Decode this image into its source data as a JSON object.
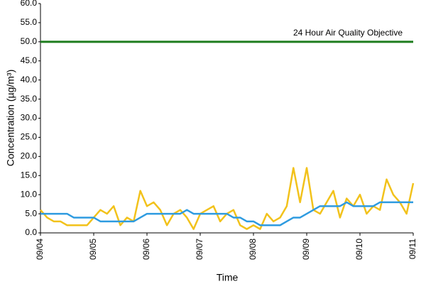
{
  "chart_data": {
    "type": "line",
    "ylabel": "Concentration (µg/m³)",
    "xlabel": "Time",
    "annotation": "24 Hour Air Quality Objective",
    "x": [
      0,
      3,
      6,
      9,
      12,
      15,
      18,
      21,
      24,
      27,
      30,
      33,
      36,
      39,
      42,
      45,
      48,
      51,
      54,
      57,
      60,
      63,
      66,
      69,
      72,
      75,
      78,
      81,
      84,
      87,
      90,
      93,
      96,
      99,
      102,
      105,
      108,
      111,
      114,
      117,
      120,
      123,
      126,
      129,
      132,
      135,
      138,
      141,
      144,
      147,
      150,
      153,
      156,
      159,
      162,
      165,
      168
    ],
    "xlim": [
      0,
      168
    ],
    "xticks": [
      {
        "value": 0,
        "label": "09/04"
      },
      {
        "value": 24,
        "label": "09/05"
      },
      {
        "value": 48,
        "label": "09/06"
      },
      {
        "value": 72,
        "label": "09/07"
      },
      {
        "value": 96,
        "label": "09/08"
      },
      {
        "value": 120,
        "label": "09/09"
      },
      {
        "value": 144,
        "label": "09/10"
      },
      {
        "value": 168,
        "label": "09/11"
      }
    ],
    "ylim": [
      0,
      60
    ],
    "yticks": [
      {
        "value": 0,
        "label": "0.0"
      },
      {
        "value": 5,
        "label": "5.0"
      },
      {
        "value": 10,
        "label": "10.0"
      },
      {
        "value": 15,
        "label": "15.0"
      },
      {
        "value": 20,
        "label": "20.0"
      },
      {
        "value": 25,
        "label": "25.0"
      },
      {
        "value": 30,
        "label": "30.0"
      },
      {
        "value": 35,
        "label": "35.0"
      },
      {
        "value": 40,
        "label": "40.0"
      },
      {
        "value": 45,
        "label": "45.0"
      },
      {
        "value": 50,
        "label": "50.0"
      },
      {
        "value": 55,
        "label": "55.0"
      },
      {
        "value": 60,
        "label": "60.0"
      }
    ],
    "grid": false,
    "series": [
      {
        "color": "#f2c21b",
        "values": [
          6,
          4,
          3,
          3,
          2,
          2,
          2,
          2,
          4,
          6,
          5,
          7,
          2,
          4,
          3,
          11,
          7,
          8,
          6,
          2,
          5,
          6,
          4,
          1,
          5,
          6,
          7,
          3,
          5,
          6,
          2,
          1,
          2,
          1,
          5,
          3,
          4,
          7,
          17,
          8,
          17,
          6,
          5,
          8,
          11,
          4,
          9,
          7,
          10,
          5,
          7,
          6,
          14,
          10,
          8,
          5,
          13
        ]
      },
      {
        "color": "#2e9be0",
        "values": [
          5,
          5,
          5,
          5,
          5,
          4,
          4,
          4,
          4,
          3,
          3,
          3,
          3,
          3,
          3,
          4,
          5,
          5,
          5,
          5,
          5,
          5,
          6,
          5,
          5,
          5,
          5,
          5,
          5,
          4,
          4,
          3,
          3,
          2,
          2,
          2,
          2,
          3,
          4,
          4,
          5,
          6,
          7,
          7,
          7,
          7,
          8,
          7,
          7,
          7,
          7,
          8,
          8,
          8,
          8,
          8,
          8
        ]
      },
      {
        "color": "#1e7d1e",
        "x": [
          0,
          168
        ],
        "values": [
          50,
          50
        ]
      }
    ]
  }
}
